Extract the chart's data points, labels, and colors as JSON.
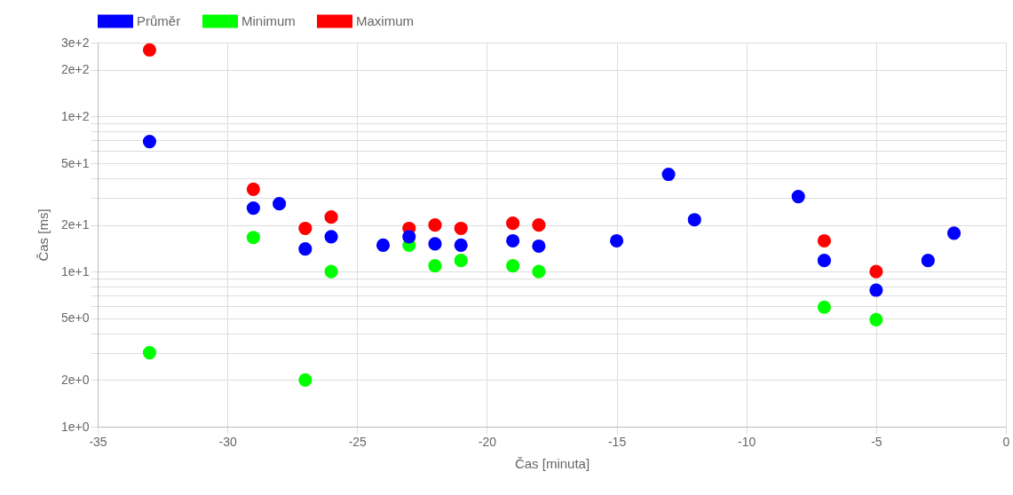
{
  "chart_data": {
    "type": "scatter",
    "xlabel": "Čas [minuta]",
    "ylabel": "Čas [ms]",
    "log": true,
    "grid": true,
    "legend": "top",
    "marker": "circle",
    "xlim": [
      -35,
      0
    ],
    "xticks": [
      -35,
      -30,
      -25,
      -20,
      -15,
      -10,
      -5,
      0
    ],
    "ylim": [
      1,
      300
    ],
    "yticks": [
      {
        "value": 1,
        "label": "1e+0"
      },
      {
        "value": 2,
        "label": "2e+0"
      },
      {
        "value": 3,
        "label": null
      },
      {
        "value": 4,
        "label": null
      },
      {
        "value": 5,
        "label": "5e+0"
      },
      {
        "value": 6,
        "label": null
      },
      {
        "value": 7,
        "label": null
      },
      {
        "value": 8,
        "label": null
      },
      {
        "value": 9,
        "label": null
      },
      {
        "value": 10,
        "label": "1e+1"
      },
      {
        "value": 20,
        "label": "2e+1"
      },
      {
        "value": 30,
        "label": null
      },
      {
        "value": 40,
        "label": null
      },
      {
        "value": 50,
        "label": "5e+1"
      },
      {
        "value": 60,
        "label": null
      },
      {
        "value": 70,
        "label": null
      },
      {
        "value": 80,
        "label": null
      },
      {
        "value": 90,
        "label": null
      },
      {
        "value": 100,
        "label": "1e+2"
      },
      {
        "value": 200,
        "label": "2e+2"
      },
      {
        "value": 300,
        "label": "3e+2"
      }
    ],
    "series": [
      {
        "name": "Průměr",
        "color": "#0000ff",
        "x": [
          -33,
          -29,
          -28,
          -27,
          -26,
          -24,
          -23,
          -22,
          -21,
          -19,
          -18,
          -15,
          -13,
          -12,
          -8,
          -7,
          -5,
          -3,
          -2
        ],
        "values": [
          69,
          25.7,
          27.4,
          14,
          16.8,
          14.8,
          16.8,
          15.1,
          14.8,
          15.8,
          14.6,
          15.8,
          42.4,
          21.6,
          30.5,
          11.8,
          7.6,
          11.8,
          17.7
        ]
      },
      {
        "name": "Minimum",
        "color": "#00ff00",
        "x": [
          -33,
          -29,
          -27,
          -26,
          -23,
          -22,
          -21,
          -19,
          -18,
          -7,
          -5
        ],
        "values": [
          3,
          16.6,
          2,
          10,
          14.8,
          10.9,
          11.8,
          10.9,
          10,
          5.9,
          4.9
        ]
      },
      {
        "name": "Maximum",
        "color": "#ff0000",
        "x": [
          -33,
          -29,
          -27,
          -26,
          -23,
          -22,
          -21,
          -19,
          -18,
          -7,
          -5
        ],
        "values": [
          269,
          34,
          19,
          22.5,
          19,
          20,
          19,
          20.5,
          20,
          15.8,
          10
        ]
      }
    ]
  }
}
